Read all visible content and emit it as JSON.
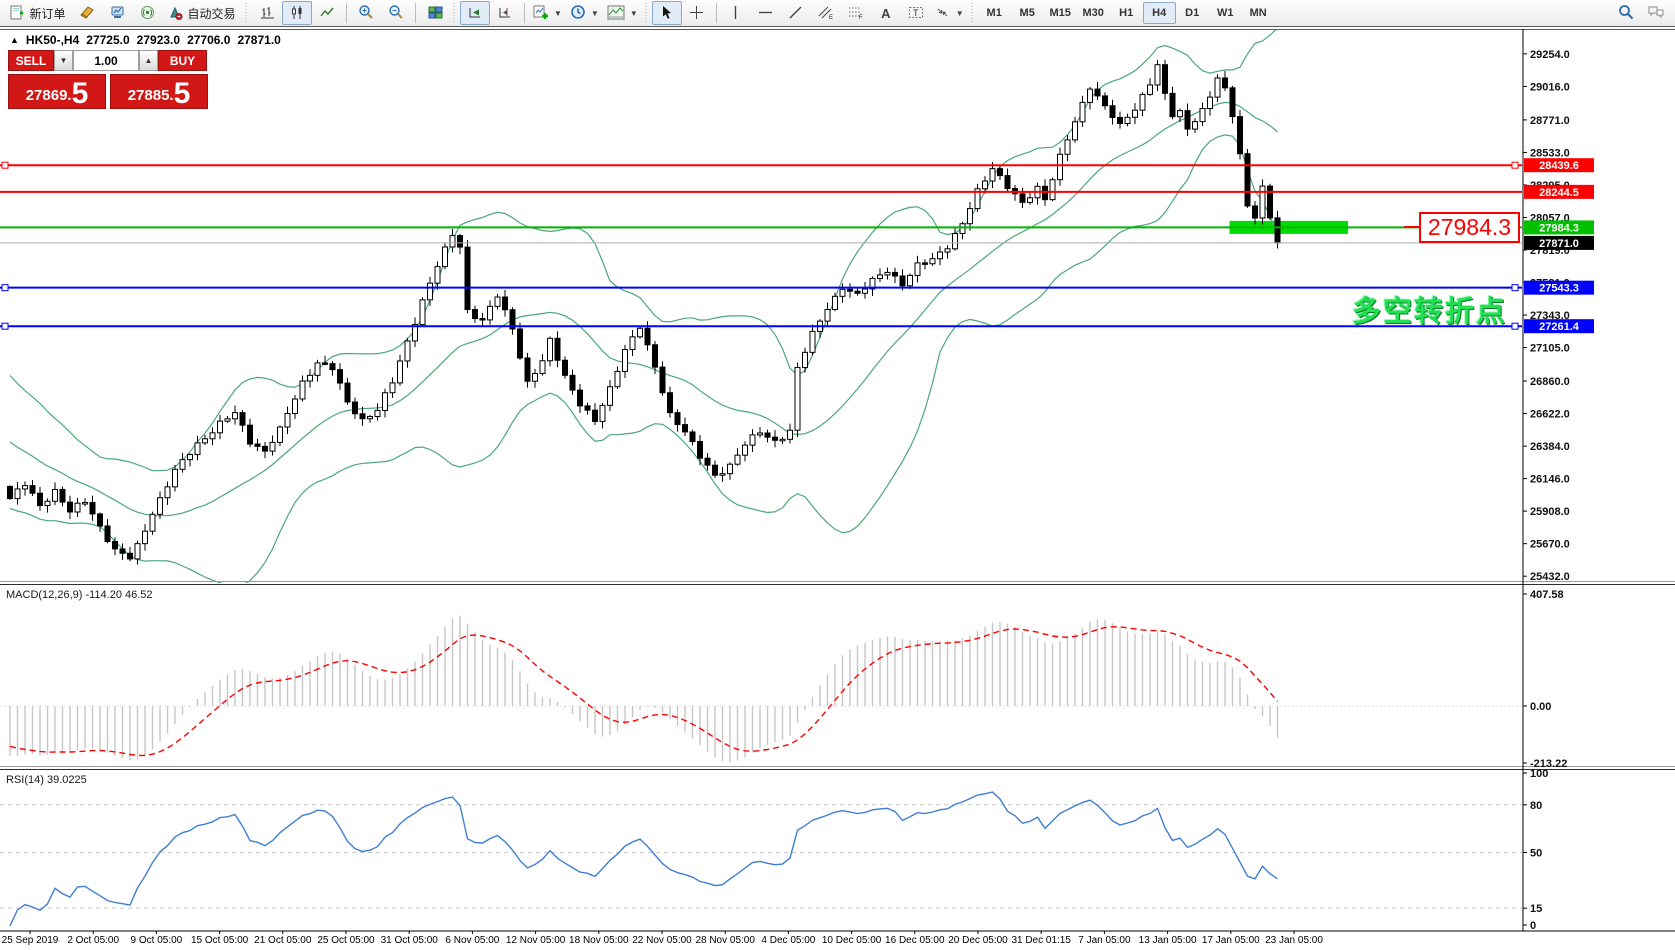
{
  "toolbar": {
    "new_order_label": "新订单",
    "autotrading_label": "自动交易",
    "timeframes": [
      "M1",
      "M5",
      "M15",
      "M30",
      "H1",
      "H4",
      "D1",
      "W1",
      "MN"
    ],
    "active_timeframe": "H4"
  },
  "symbol_header": {
    "arrow": "▲",
    "symbol": "HK50-,H4",
    "open": "27725.0",
    "high": "27923.0",
    "low": "27706.0",
    "close": "27871.0"
  },
  "order_panel": {
    "sell_label": "SELL",
    "buy_label": "BUY",
    "volume": "1.00",
    "sell_price_main": "27869",
    "sell_price_dot": ".",
    "sell_price_big": "5",
    "buy_price_main": "27885",
    "buy_price_dot": ".",
    "buy_price_big": "5"
  },
  "price_axis": {
    "labels": [
      "29254.0",
      "29016.0",
      "28771.0",
      "28533.0",
      "28295.0",
      "28057.0",
      "27819.0",
      "27581.0",
      "27343.0",
      "27105.0",
      "26860.0",
      "26622.0",
      "26384.0",
      "26146.0",
      "25908.0",
      "25670.0",
      "25432.0"
    ],
    "badges": [
      {
        "text": "28439.6",
        "color": "#ff0000",
        "price": 28439.6
      },
      {
        "text": "28244.5",
        "color": "#ff0000",
        "price": 28244.5
      },
      {
        "text": "27984.3",
        "color": "#00c000",
        "price": 27984.3
      },
      {
        "text": "27871.0",
        "color": "#000000",
        "price": 27871.0
      },
      {
        "text": "27543.3",
        "color": "#0000ff",
        "price": 27543.3
      },
      {
        "text": "27261.4",
        "color": "#0000ff",
        "price": 27261.4
      }
    ]
  },
  "time_axis": {
    "labels": [
      "25 Sep 2019",
      "2 Oct 05:00",
      "9 Oct 05:00",
      "15 Oct 05:00",
      "21 Oct 05:00",
      "25 Oct 05:00",
      "31 Oct 05:00",
      "6 Nov 05:00",
      "12 Nov 05:00",
      "18 Nov 05:00",
      "22 Nov 05:00",
      "28 Nov 05:00",
      "4 Dec 05:00",
      "10 Dec 05:00",
      "16 Dec 05:00",
      "20 Dec 05:00",
      "31 Dec 01:15",
      "7 Jan 05:00",
      "13 Jan 05:00",
      "17 Jan 05:00",
      "23 Jan 05:00"
    ]
  },
  "macd_panel": {
    "label": "MACD(12,26,9) -114.20 46.52",
    "axis_labels": [
      "407.58",
      "0.00",
      "-213.22"
    ],
    "axis_values": [
      407.58,
      0.0,
      -213.22
    ]
  },
  "rsi_panel": {
    "label": "RSI(14) 39.0225",
    "axis_labels": [
      "100",
      "80",
      "50",
      "15",
      "0"
    ],
    "axis_values": [
      100,
      80,
      50,
      15,
      0
    ],
    "level_lines": [
      80,
      50,
      15
    ]
  },
  "annotations": {
    "price_box_text": "27984.3",
    "note_text": "多空转折点",
    "green_bar": {
      "start_index": 163,
      "end_index": 178,
      "price": 27984.3,
      "height": 13,
      "color": "#00dc00"
    }
  },
  "chart_data": {
    "type": "candlestick",
    "symbol": "HK50-",
    "period": "H4",
    "ohlc_current": {
      "open": 27725.0,
      "high": 27923.0,
      "low": 27706.0,
      "close": 27871.0
    },
    "bid": 27869.5,
    "ask": 27885.5,
    "indicators": [
      "Bollinger Bands(20,2)",
      "MACD(12,26,9)",
      "RSI(14)"
    ],
    "macd_values": {
      "main": -114.2,
      "signal": 46.52
    },
    "rsi_value": 39.0225,
    "horizontal_lines": [
      {
        "price": 28439.6,
        "color": "#ff0000",
        "width": 2,
        "anchors": true
      },
      {
        "price": 28244.5,
        "color": "#ff0000",
        "width": 2,
        "anchors": false
      },
      {
        "price": 27984.3,
        "color": "#00b400",
        "width": 2,
        "anchors": false
      },
      {
        "price": 27543.3,
        "color": "#0000ff",
        "width": 2,
        "anchors": true
      },
      {
        "price": 27261.4,
        "color": "#0000ff",
        "width": 2,
        "anchors": true
      }
    ],
    "current_price_line": {
      "price": 27871.0,
      "color": "#ababab",
      "width": 1
    },
    "visible_price_range": [
      25375,
      29430
    ],
    "candle_count": 170,
    "price_keypoints": [
      [
        0,
        26000
      ],
      [
        2,
        26100
      ],
      [
        4,
        25950
      ],
      [
        6,
        26060
      ],
      [
        8,
        25900
      ],
      [
        10,
        25980
      ],
      [
        12,
        25800
      ],
      [
        14,
        25620
      ],
      [
        16,
        25560
      ],
      [
        17,
        25650
      ],
      [
        19,
        25900
      ],
      [
        22,
        26200
      ],
      [
        25,
        26400
      ],
      [
        28,
        26550
      ],
      [
        30,
        26620
      ],
      [
        32,
        26420
      ],
      [
        34,
        26350
      ],
      [
        36,
        26500
      ],
      [
        39,
        26850
      ],
      [
        41,
        27000
      ],
      [
        43,
        26950
      ],
      [
        45,
        26700
      ],
      [
        47,
        26580
      ],
      [
        49,
        26650
      ],
      [
        51,
        26850
      ],
      [
        53,
        27150
      ],
      [
        55,
        27450
      ],
      [
        57,
        27700
      ],
      [
        59,
        27930
      ],
      [
        60,
        27850
      ],
      [
        61,
        27380
      ],
      [
        63,
        27300
      ],
      [
        65,
        27480
      ],
      [
        67,
        27250
      ],
      [
        69,
        26850
      ],
      [
        71,
        27000
      ],
      [
        72,
        27150
      ],
      [
        74,
        26900
      ],
      [
        76,
        26700
      ],
      [
        78,
        26560
      ],
      [
        80,
        26800
      ],
      [
        82,
        27100
      ],
      [
        84,
        27260
      ],
      [
        86,
        26950
      ],
      [
        88,
        26620
      ],
      [
        90,
        26500
      ],
      [
        92,
        26300
      ],
      [
        94,
        26160
      ],
      [
        96,
        26250
      ],
      [
        98,
        26400
      ],
      [
        100,
        26480
      ],
      [
        102,
        26420
      ],
      [
        104,
        26500
      ],
      [
        105,
        26950
      ],
      [
        107,
        27200
      ],
      [
        109,
        27400
      ],
      [
        111,
        27550
      ],
      [
        113,
        27480
      ],
      [
        115,
        27600
      ],
      [
        117,
        27680
      ],
      [
        119,
        27560
      ],
      [
        121,
        27700
      ],
      [
        123,
        27760
      ],
      [
        125,
        27850
      ],
      [
        127,
        28000
      ],
      [
        129,
        28250
      ],
      [
        131,
        28430
      ],
      [
        133,
        28280
      ],
      [
        135,
        28150
      ],
      [
        137,
        28280
      ],
      [
        138,
        28200
      ],
      [
        140,
        28500
      ],
      [
        142,
        28750
      ],
      [
        144,
        29020
      ],
      [
        145,
        28950
      ],
      [
        147,
        28800
      ],
      [
        148,
        28720
      ],
      [
        150,
        28850
      ],
      [
        152,
        29050
      ],
      [
        153,
        29180
      ],
      [
        154,
        28950
      ],
      [
        155,
        28800
      ],
      [
        156,
        28820
      ],
      [
        157,
        28700
      ],
      [
        158,
        28780
      ],
      [
        159,
        28850
      ],
      [
        160,
        28950
      ],
      [
        161,
        29080
      ],
      [
        162,
        28980
      ],
      [
        163,
        28800
      ],
      [
        164,
        28520
      ],
      [
        165,
        28140
      ],
      [
        166,
        28080
      ],
      [
        167,
        28280
      ],
      [
        168,
        28050
      ],
      [
        169,
        27871
      ]
    ]
  }
}
